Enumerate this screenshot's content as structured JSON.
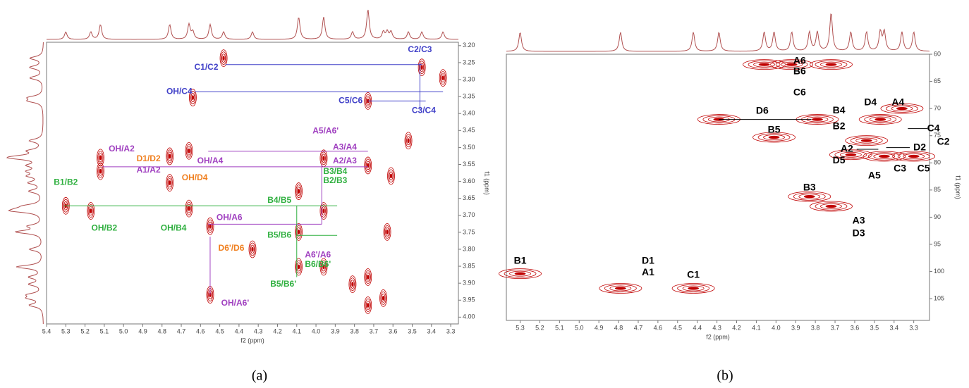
{
  "chart_data": [
    {
      "type": "contour",
      "panel_label": "(a)",
      "xlabel": "f2 (ppm)",
      "ylabel": "f1 (ppm)",
      "color": "#c00000",
      "xlim": [
        5.4,
        3.26
      ],
      "ylim": [
        3.19,
        4.02
      ],
      "xticks": [
        5.4,
        5.3,
        5.2,
        5.1,
        {
          "value": 5,
          "label": "5.0"
        },
        4.9,
        4.8,
        4.7,
        4.6,
        4.5,
        4.4,
        4.3,
        4.2,
        4.1,
        {
          "value": 4,
          "label": "4.0"
        },
        3.9,
        3.8,
        3.7,
        3.6,
        3.5,
        3.4,
        3.3
      ],
      "yticks": [
        {
          "value": 3.2,
          "label": "3.20"
        },
        3.25,
        {
          "value": 3.3,
          "label": "3.30"
        },
        3.35,
        {
          "value": 3.4,
          "label": "3.40"
        },
        3.45,
        {
          "value": 3.5,
          "label": "3.50"
        },
        3.55,
        {
          "value": 3.6,
          "label": "3.60"
        },
        3.65,
        {
          "value": 3.7,
          "label": "3.70"
        },
        3.75,
        {
          "value": 3.8,
          "label": "3.80"
        },
        3.85,
        {
          "value": 3.9,
          "label": "3.90"
        },
        3.95,
        {
          "value": 4,
          "label": "4.00"
        }
      ],
      "peaks": {
        "x": [
          5.12,
          5.12,
          5.3,
          5.17,
          4.76,
          4.76,
          4.66,
          4.66,
          4.48,
          4.64,
          4.55,
          4.55,
          4.33,
          4.09,
          4.09,
          4.09,
          3.96,
          3.96,
          3.73,
          3.73,
          3.73,
          3.73,
          3.63,
          3.61,
          3.34,
          3.45,
          3.52,
          3.65,
          3.81,
          3.96
        ],
        "y": [
          3.53,
          3.57,
          3.672,
          3.687,
          3.526,
          3.604,
          3.51,
          3.68,
          3.237,
          3.353,
          3.732,
          3.934,
          3.8,
          3.629,
          3.749,
          3.852,
          3.532,
          3.687,
          3.363,
          3.553,
          3.882,
          3.965,
          3.749,
          3.584,
          3.295,
          3.264,
          3.48,
          3.944,
          3.903,
          3.852
        ]
      },
      "annotations": [
        {
          "text": "C1/C2",
          "color": "#4040c8",
          "x": 4.57,
          "y": 3.264
        },
        {
          "text": "OH/C4",
          "color": "#4040c8",
          "x": 4.71,
          "y": 3.336
        },
        {
          "text": "C2/C3",
          "color": "#4040c8",
          "x": 3.46,
          "y": 3.212
        },
        {
          "text": "C5/C6",
          "color": "#4040c8",
          "x": 3.82,
          "y": 3.363
        },
        {
          "text": "C3/C4",
          "color": "#4040c8",
          "x": 3.44,
          "y": 3.392
        },
        {
          "text": "A5/A6'",
          "color": "#a040c0",
          "x": 3.95,
          "y": 3.452
        },
        {
          "text": "OH/A2",
          "color": "#a040c0",
          "x": 5.01,
          "y": 3.505
        },
        {
          "text": "D1/D2",
          "color": "#f08020",
          "x": 4.87,
          "y": 3.534
        },
        {
          "text": "A1/A2",
          "color": "#a040c0",
          "x": 4.87,
          "y": 3.567
        },
        {
          "text": "OH/A4",
          "color": "#a040c0",
          "x": 4.55,
          "y": 3.54
        },
        {
          "text": "OH/D4",
          "color": "#f08020",
          "x": 4.63,
          "y": 3.59
        },
        {
          "text": "A3/A4",
          "color": "#a040c0",
          "x": 3.85,
          "y": 3.5
        },
        {
          "text": "A2/A3",
          "color": "#a040c0",
          "x": 3.85,
          "y": 3.54
        },
        {
          "text": "B3/B4",
          "color": "#30b040",
          "x": 3.9,
          "y": 3.571
        },
        {
          "text": "B2/B3",
          "color": "#30b040",
          "x": 3.9,
          "y": 3.598
        },
        {
          "text": "B1/B2",
          "color": "#30b040",
          "x": 5.3,
          "y": 3.604
        },
        {
          "text": "B4/B5",
          "color": "#30b040",
          "x": 4.19,
          "y": 3.656
        },
        {
          "text": "OH/B2",
          "color": "#30b040",
          "x": 5.1,
          "y": 3.738
        },
        {
          "text": "OH/B4",
          "color": "#30b040",
          "x": 4.74,
          "y": 3.738
        },
        {
          "text": "OH/A6",
          "color": "#a040c0",
          "x": 4.45,
          "y": 3.707
        },
        {
          "text": "B5/B6",
          "color": "#30b040",
          "x": 4.19,
          "y": 3.759
        },
        {
          "text": "D6'/D6",
          "color": "#f08020",
          "x": 4.44,
          "y": 3.798
        },
        {
          "text": "A6'/A6",
          "color": "#a040c0",
          "x": 3.99,
          "y": 3.817
        },
        {
          "text": "B6/B6'",
          "color": "#30b040",
          "x": 3.99,
          "y": 3.845
        },
        {
          "text": "B5/B6'",
          "color": "#30b040",
          "x": 4.17,
          "y": 3.903
        },
        {
          "text": "OH/A6'",
          "color": "#a040c0",
          "x": 4.42,
          "y": 3.959
        }
      ],
      "connectors": [
        {
          "color": "#4040c8",
          "x": [
            4.47,
            3.45
          ],
          "y": [
            3.256,
            3.256
          ]
        },
        {
          "color": "#4040c8",
          "x": [
            4.63,
            3.34
          ],
          "y": [
            3.336,
            3.336
          ]
        },
        {
          "color": "#4040c8",
          "x": [
            3.73,
            3.43
          ],
          "y": [
            3.363,
            3.363
          ]
        },
        {
          "color": "#4040c8",
          "x": [
            3.46,
            3.46
          ],
          "y": [
            3.25,
            3.39
          ]
        },
        {
          "color": "#a040c0",
          "x": [
            4.56,
            3.73
          ],
          "y": [
            3.511,
            3.511
          ]
        },
        {
          "color": "#a040c0",
          "x": [
            5.11,
            3.73
          ],
          "y": [
            3.557,
            3.557
          ]
        },
        {
          "color": "#a040c0",
          "x": [
            4.56,
            3.97
          ],
          "y": [
            3.726,
            3.726
          ]
        },
        {
          "color": "#a040c0",
          "x": [
            3.97,
            3.97
          ],
          "y": [
            3.55,
            3.726
          ]
        },
        {
          "color": "#a040c0",
          "x": [
            4.55,
            4.55
          ],
          "y": [
            3.763,
            3.934
          ]
        },
        {
          "color": "#30b040",
          "x": [
            5.31,
            3.89
          ],
          "y": [
            3.672,
            3.672
          ]
        },
        {
          "color": "#30b040",
          "x": [
            4.1,
            3.89
          ],
          "y": [
            3.759,
            3.759
          ]
        },
        {
          "color": "#30b040",
          "x": [
            4.1,
            4.1
          ],
          "y": [
            3.672,
            3.882
          ]
        }
      ]
    },
    {
      "type": "contour",
      "panel_label": "(b)",
      "xlabel": "f2 (ppm)",
      "ylabel": "f1 (ppm)",
      "color": "#c00000",
      "xlim": [
        5.37,
        3.22
      ],
      "ylim": [
        60,
        109
      ],
      "xticks": [
        5.3,
        5.2,
        5.1,
        {
          "value": 5,
          "label": "5.0"
        },
        4.9,
        4.8,
        4.7,
        4.6,
        4.5,
        4.4,
        4.3,
        4.2,
        4.1,
        {
          "value": 4,
          "label": "4.0"
        },
        3.9,
        3.8,
        3.7,
        3.6,
        3.5,
        3.4,
        3.3
      ],
      "yticks": [
        60,
        65,
        70,
        75,
        80,
        85,
        90,
        95,
        100,
        105
      ],
      "peaks": {
        "x": [
          5.3,
          4.79,
          4.42,
          3.83,
          3.72,
          4.06,
          3.92,
          3.72,
          4.29,
          3.79,
          4.01,
          3.47,
          3.54,
          3.45,
          3.36,
          3.62,
          3.3
        ],
        "y": [
          100.4,
          103.1,
          103.1,
          86.2,
          88.0,
          61.9,
          61.9,
          61.9,
          72.0,
          72.0,
          75.3,
          72.0,
          75.9,
          78.8,
          70.0,
          78.5,
          78.8
        ]
      },
      "annotations": [
        {
          "text": "A6",
          "color": "#000000",
          "x": 3.88,
          "y": 61.3
        },
        {
          "text": "B6",
          "color": "#000000",
          "x": 3.88,
          "y": 63.2
        },
        {
          "text": "C6",
          "color": "#000000",
          "x": 3.88,
          "y": 67.1
        },
        {
          "text": "D6",
          "color": "#000000",
          "x": 4.07,
          "y": 70.5
        },
        {
          "text": "B5",
          "color": "#000000",
          "x": 4.01,
          "y": 74.0
        },
        {
          "text": "B4",
          "color": "#000000",
          "x": 3.68,
          "y": 70.4
        },
        {
          "text": "D4",
          "color": "#000000",
          "x": 3.52,
          "y": 68.9
        },
        {
          "text": "A4",
          "color": "#000000",
          "x": 3.38,
          "y": 68.9
        },
        {
          "text": "B2",
          "color": "#000000",
          "x": 3.68,
          "y": 73.3
        },
        {
          "text": "C4",
          "color": "#000000",
          "x": 3.2,
          "y": 73.7
        },
        {
          "text": "C2",
          "color": "#000000",
          "x": 3.15,
          "y": 76.2
        },
        {
          "text": "A2",
          "color": "#000000",
          "x": 3.64,
          "y": 77.5
        },
        {
          "text": "D2",
          "color": "#000000",
          "x": 3.27,
          "y": 77.2
        },
        {
          "text": "D5",
          "color": "#000000",
          "x": 3.68,
          "y": 79.6
        },
        {
          "text": "C3",
          "color": "#000000",
          "x": 3.37,
          "y": 81.1
        },
        {
          "text": "A5",
          "color": "#000000",
          "x": 3.5,
          "y": 82.4
        },
        {
          "text": "C5",
          "color": "#000000",
          "x": 3.25,
          "y": 81.1
        },
        {
          "text": "B3",
          "color": "#000000",
          "x": 3.83,
          "y": 84.6
        },
        {
          "text": "A3",
          "color": "#000000",
          "x": 3.58,
          "y": 90.7
        },
        {
          "text": "D3",
          "color": "#000000",
          "x": 3.58,
          "y": 93.0
        },
        {
          "text": "D1",
          "color": "#000000",
          "x": 4.65,
          "y": 98.1
        },
        {
          "text": "A1",
          "color": "#000000",
          "x": 4.65,
          "y": 100.2
        },
        {
          "text": "C1",
          "color": "#000000",
          "x": 4.42,
          "y": 100.7
        },
        {
          "text": "B1",
          "color": "#000000",
          "x": 5.3,
          "y": 98.1
        }
      ],
      "connectors": [
        {
          "color": "#000000",
          "x": [
            4.29,
            3.82
          ],
          "y": [
            72.0,
            72.0
          ]
        },
        {
          "color": "#000000",
          "x": [
            3.59,
            3.48
          ],
          "y": [
            77.5,
            77.5
          ]
        },
        {
          "color": "#000000",
          "x": [
            3.32,
            3.44
          ],
          "y": [
            77.2,
            77.2
          ]
        },
        {
          "color": "#000000",
          "x": [
            3.23,
            3.33
          ],
          "y": [
            73.7,
            73.7
          ]
        }
      ]
    }
  ]
}
